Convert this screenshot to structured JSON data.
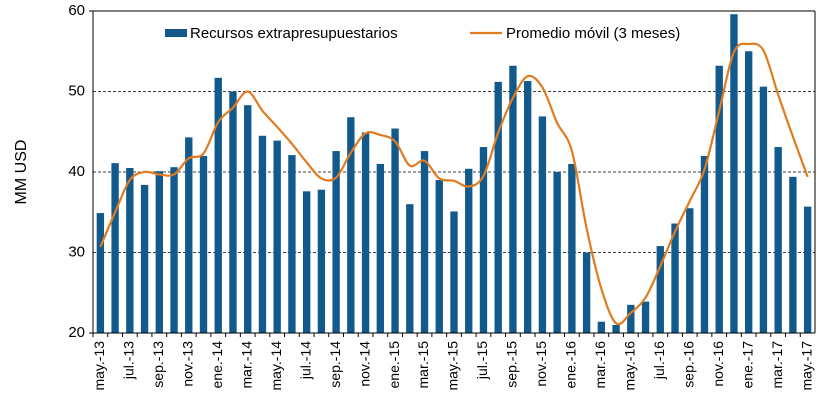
{
  "chart_data": {
    "type": "bar_line",
    "y_label": "MM USD",
    "categories": [
      "may.-13",
      null,
      "jul.-13",
      null,
      "sep.-13",
      null,
      "nov.-13",
      null,
      "ene.-14",
      null,
      "mar.-14",
      null,
      "may.-14",
      null,
      "jul.-14",
      null,
      "sep.-14",
      null,
      "nov.-14",
      null,
      "ene.-15",
      null,
      "mar.-15",
      null,
      "may.-15",
      null,
      "jul.-15",
      null,
      "sep.-15",
      null,
      "nov.-15",
      null,
      "ene.-16",
      null,
      "mar.-16",
      null,
      "may.-16",
      null,
      "jul.-16",
      null,
      "sep.-16",
      null,
      "nov.-16",
      null,
      "ene.-17",
      null,
      "mar.-17",
      null,
      "may.-17"
    ],
    "series": [
      {
        "name": "Recursos extrapresupuestarios",
        "type": "bar",
        "color": "#135a8c",
        "values": [
          34.9,
          41.1,
          40.5,
          38.4,
          40.1,
          40.6,
          44.3,
          42.0,
          51.7,
          50.0,
          48.3,
          44.5,
          43.9,
          42.1,
          37.6,
          37.8,
          42.6,
          46.8,
          44.9,
          41.0,
          45.4,
          36.0,
          42.6,
          39.0,
          35.1,
          40.4,
          43.1,
          51.2,
          53.2,
          51.3,
          46.9,
          40.0,
          41.0,
          30.0,
          21.4,
          21.0,
          23.5,
          23.9,
          30.8,
          33.6,
          35.5,
          42.0,
          53.2,
          59.6,
          55.0,
          50.6,
          43.1,
          39.4,
          35.7
        ]
      },
      {
        "name": "Promedio móvil (3 meses)",
        "type": "line",
        "color": "#e07b20",
        "values": [
          30.7,
          35.0,
          39.0,
          40.0,
          39.7,
          39.7,
          41.7,
          42.3,
          46.2,
          48.0,
          50.0,
          47.6,
          45.6,
          43.5,
          41.2,
          39.2,
          39.3,
          42.4,
          44.8,
          44.6,
          43.8,
          40.8,
          41.4,
          39.2,
          38.9,
          38.2,
          39.5,
          44.9,
          49.2,
          51.9,
          50.5,
          46.1,
          42.6,
          33.0,
          25.5,
          21.2,
          22.5,
          24.4,
          28.3,
          32.6,
          36.4,
          40.3,
          47.6,
          54.9,
          55.9,
          55.1,
          49.6,
          44.4,
          39.4
        ]
      }
    ],
    "ylim": [
      20,
      60
    ],
    "yticks": [
      20,
      30,
      40,
      50,
      60
    ],
    "grid": true,
    "legend": "top"
  }
}
